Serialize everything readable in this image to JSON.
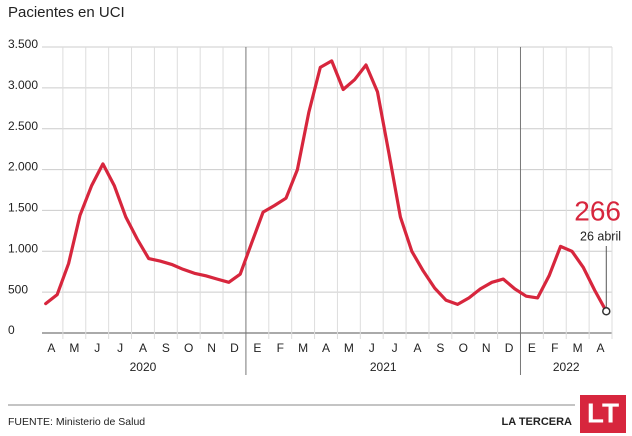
{
  "chart_data": {
    "type": "line",
    "title": "Pacientes en UCI",
    "categories": [
      "A",
      null,
      "M",
      null,
      "J",
      null,
      "J",
      null,
      "A",
      null,
      "S",
      null,
      "O",
      null,
      "N",
      null,
      "D",
      null,
      "E",
      null,
      "F",
      null,
      "M",
      null,
      "A",
      null,
      "M",
      null,
      "J",
      null,
      "J",
      null,
      "A",
      null,
      "S",
      null,
      "O",
      null,
      "N",
      null,
      "D",
      null,
      "E",
      null,
      "F",
      null,
      "M",
      null,
      "A",
      null
    ],
    "years": [
      "2020",
      "2021",
      "2022"
    ],
    "values": [
      360,
      470,
      850,
      1440,
      1800,
      2070,
      1800,
      1420,
      1150,
      910,
      880,
      840,
      780,
      730,
      700,
      660,
      620,
      720,
      1100,
      1480,
      1560,
      1650,
      2000,
      2700,
      3250,
      3330,
      2980,
      3100,
      3280,
      2950,
      2200,
      1420,
      1000,
      760,
      550,
      400,
      350,
      430,
      540,
      620,
      660,
      540,
      450,
      430,
      700,
      1060,
      1000,
      800,
      520,
      266
    ],
    "color": "#d7263d",
    "ylim": [
      0,
      3500
    ],
    "yticks": [
      0,
      500,
      {
        "value": 1000,
        "label": "1.000"
      },
      {
        "value": 1500,
        "label": "1.500"
      },
      {
        "value": 2000,
        "label": "2.000"
      },
      {
        "value": 2500,
        "label": "2.500"
      },
      {
        "value": 3000,
        "label": "3.000"
      },
      {
        "value": 3500,
        "label": "3.500"
      }
    ],
    "grid": true,
    "annotation": "26 abril",
    "source": "FUENTE: Ministerio de Salud",
    "brand": "LA TERCERA",
    "logo": "LT"
  }
}
